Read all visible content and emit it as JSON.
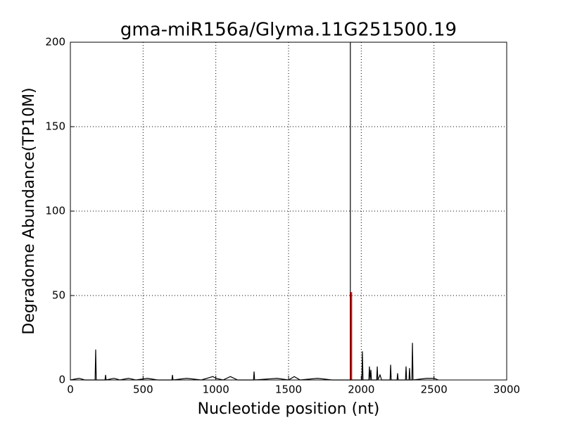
{
  "chart_data": {
    "type": "line",
    "title": "gma-miR156a/Glyma.11G251500.19",
    "xlabel": "Nucleotide position (nt)",
    "ylabel": "Degradome Abundance(TP10M)",
    "xlim": [
      0,
      3000
    ],
    "xticks": [
      0,
      500,
      1000,
      1500,
      2000,
      2500,
      3000
    ],
    "ylim": [
      0,
      200
    ],
    "yticks": [
      0,
      50,
      100,
      150,
      200
    ],
    "grid": true,
    "x": [
      0,
      60,
      100,
      170,
      174,
      178,
      238,
      242,
      246,
      300,
      340,
      400,
      450,
      530,
      600,
      698,
      702,
      706,
      800,
      900,
      980,
      1000,
      1050,
      1100,
      1150,
      1259,
      1263,
      1267,
      1420,
      1500,
      1539,
      1580,
      1700,
      1800,
      1900,
      2004,
      2008,
      2012,
      2052,
      2056,
      2061,
      2066,
      2070,
      2106,
      2110,
      2114,
      2129,
      2140,
      2198,
      2202,
      2206,
      2246,
      2250,
      2254,
      2304,
      2308,
      2312,
      2328,
      2332,
      2336,
      2348,
      2352,
      2356,
      2450,
      2500,
      2530
    ],
    "series": [
      {
        "color": "#000000",
        "values": [
          0,
          1,
          0,
          0,
          18,
          0,
          0,
          3,
          0,
          1,
          0,
          1,
          0,
          1,
          0,
          0,
          3,
          0,
          1,
          0,
          2,
          1,
          0,
          2,
          0,
          0,
          5,
          0,
          1,
          0,
          2,
          0,
          1,
          0,
          0,
          0,
          17,
          0,
          0,
          8,
          0,
          6,
          0,
          0,
          8,
          0,
          3,
          0,
          0,
          9,
          0,
          0,
          4,
          0,
          0,
          8,
          0,
          0,
          7,
          0,
          0,
          22,
          0,
          1,
          1,
          0
        ]
      }
    ],
    "highlight": {
      "x": 1930,
      "value": 52,
      "color": "#ff0000"
    },
    "cleavage_position": 1925
  }
}
